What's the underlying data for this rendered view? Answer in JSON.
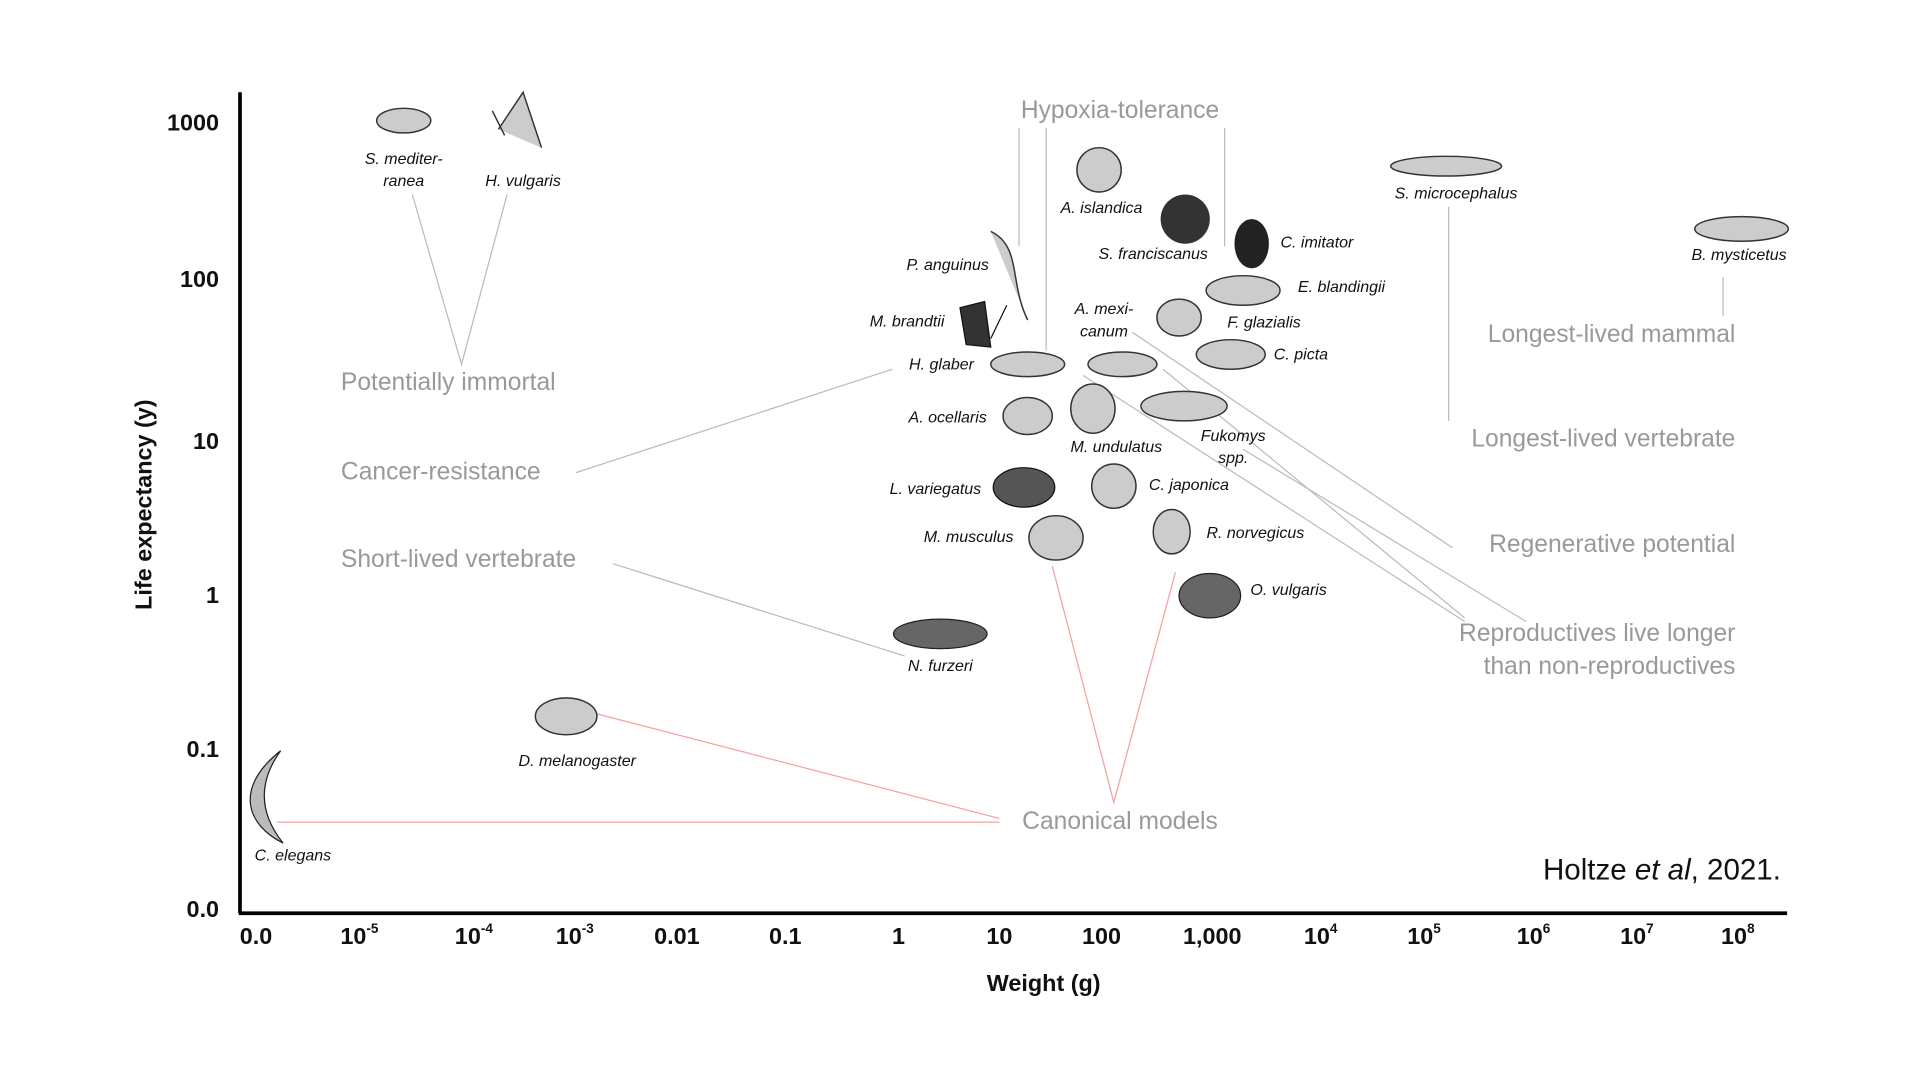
{
  "axes": {
    "y_title": "Life expectancy (y)",
    "x_title": "Weight (g)",
    "y_ticks": [
      "1000",
      "100",
      "10",
      "1",
      "0.1",
      "0.0"
    ],
    "x_ticks": [
      {
        "base": "0.0"
      },
      {
        "base": "10",
        "exp": "-5"
      },
      {
        "base": "10",
        "exp": "-4"
      },
      {
        "base": "10",
        "exp": "-3"
      },
      {
        "base": "0.01"
      },
      {
        "base": "0.1"
      },
      {
        "base": "1"
      },
      {
        "base": "10"
      },
      {
        "base": "100"
      },
      {
        "base": "1,000"
      },
      {
        "base": "10",
        "exp": "4"
      },
      {
        "base": "10",
        "exp": "5"
      },
      {
        "base": "10",
        "exp": "6"
      },
      {
        "base": "10",
        "exp": "7"
      },
      {
        "base": "10",
        "exp": "8"
      }
    ]
  },
  "species": [
    {
      "lines": [
        "S. mediter-",
        "ranea"
      ]
    },
    {
      "lines": [
        "H. vulgaris"
      ]
    },
    {
      "lines": [
        "A. islandica"
      ]
    },
    {
      "lines": [
        "S. franciscanus"
      ]
    },
    {
      "lines": [
        "C. imitator"
      ]
    },
    {
      "lines": [
        "P. anguinus"
      ]
    },
    {
      "lines": [
        "E. blandingii"
      ]
    },
    {
      "lines": [
        "M. brandtii"
      ]
    },
    {
      "lines": [
        "A. mexi-",
        "canum"
      ]
    },
    {
      "lines": [
        "F. glazialis"
      ]
    },
    {
      "lines": [
        "H. glaber"
      ]
    },
    {
      "lines": [
        "C. picta"
      ]
    },
    {
      "lines": [
        "A. ocellaris"
      ]
    },
    {
      "lines": [
        "M. undulatus"
      ]
    },
    {
      "lines": [
        "Fukomys",
        "spp."
      ]
    },
    {
      "lines": [
        "L. variegatus"
      ]
    },
    {
      "lines": [
        "C. japonica"
      ]
    },
    {
      "lines": [
        "M. musculus"
      ]
    },
    {
      "lines": [
        "R. norvegicus"
      ]
    },
    {
      "lines": [
        "O. vulgaris"
      ]
    },
    {
      "lines": [
        "N. furzeri"
      ]
    },
    {
      "lines": [
        "D. melanogaster"
      ]
    },
    {
      "lines": [
        "C. elegans"
      ]
    },
    {
      "lines": [
        "S. microcephalus"
      ]
    },
    {
      "lines": [
        "B. mysticetus"
      ]
    }
  ],
  "categories": [
    {
      "lines": [
        "Potentially immortal"
      ]
    },
    {
      "lines": [
        "Cancer-resistance"
      ]
    },
    {
      "lines": [
        "Short-lived vertebrate"
      ]
    },
    {
      "lines": [
        "Hypoxia-tolerance"
      ]
    },
    {
      "lines": [
        "Longest-lived mammal"
      ]
    },
    {
      "lines": [
        "Longest-lived vertebrate"
      ]
    },
    {
      "lines": [
        "Regenerative potential"
      ]
    },
    {
      "lines": [
        "Reproductives live longer",
        "than non-reproductives"
      ]
    },
    {
      "lines": [
        "Canonical models"
      ]
    }
  ],
  "citation": {
    "author": "Holtze ",
    "etal": "et al",
    "year": ", 2021."
  }
}
